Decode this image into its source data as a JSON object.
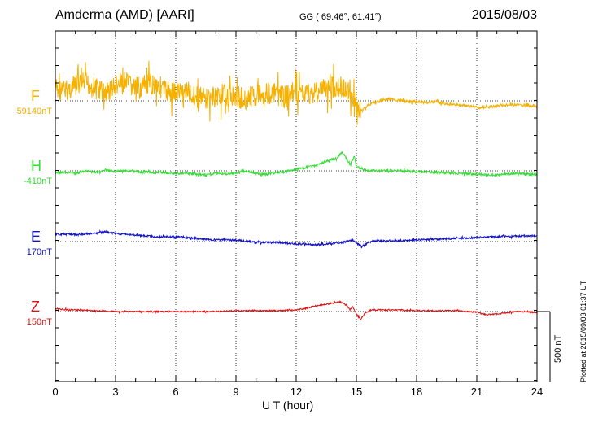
{
  "header": {
    "station": "Amderma (AMD)  [AARI]",
    "coords": "GG ( 69.46°,  61.41°)",
    "date": "2015/08/03"
  },
  "plotted_note": "Plotted at 2015/09/03 01:37 UT",
  "scale_label": "500 nT",
  "chart_data": {
    "type": "line",
    "xlabel": "U T (hour)",
    "x_ticks": [
      "0",
      "3",
      "6",
      "9",
      "12",
      "15",
      "18",
      "21",
      "24"
    ],
    "xlim": [
      0,
      24
    ],
    "grid": true,
    "scale_bar_nT": 500,
    "series": [
      {
        "name": "F",
        "baseline": "59140nT",
        "color": "#f5b000",
        "noise": 14,
        "points": [
          [
            0,
            -15
          ],
          [
            0.5,
            -12
          ],
          [
            1,
            -18
          ],
          [
            1.5,
            -22
          ],
          [
            2,
            -15
          ],
          [
            2.5,
            -10
          ],
          [
            3,
            -18
          ],
          [
            3.5,
            -22
          ],
          [
            4,
            -15
          ],
          [
            4.5,
            -18
          ],
          [
            5,
            -22
          ],
          [
            5.5,
            -12
          ],
          [
            6,
            -10
          ],
          [
            6.5,
            -12
          ],
          [
            7,
            -5
          ],
          [
            7.5,
            -2
          ],
          [
            8,
            -5
          ],
          [
            8.5,
            -8
          ],
          [
            9,
            -5
          ],
          [
            9.5,
            -2
          ],
          [
            10,
            -8
          ],
          [
            10.5,
            -10
          ],
          [
            11,
            -8
          ],
          [
            11.5,
            -5
          ],
          [
            12,
            -10
          ],
          [
            12.5,
            -8
          ],
          [
            13,
            -12
          ],
          [
            13.5,
            -15
          ],
          [
            14,
            -18
          ],
          [
            14.5,
            -12
          ],
          [
            14.8,
            -5
          ],
          [
            15,
            3
          ],
          [
            15.1,
            10
          ],
          [
            15.3,
            12
          ],
          [
            15.6,
            5
          ],
          [
            16,
            1
          ],
          [
            16.5,
            -2
          ],
          [
            17,
            -1
          ],
          [
            17.5,
            1
          ],
          [
            18,
            1
          ],
          [
            18.5,
            2
          ],
          [
            19,
            1
          ],
          [
            19.5,
            4
          ],
          [
            20,
            5
          ],
          [
            20.5,
            6
          ],
          [
            21,
            8
          ],
          [
            21.5,
            8
          ],
          [
            22,
            6
          ],
          [
            22.5,
            5
          ],
          [
            23,
            5
          ],
          [
            23.5,
            6
          ],
          [
            24,
            7
          ]
        ]
      },
      {
        "name": "H",
        "baseline": "-410nT",
        "color": "#33dd33",
        "noise": 1.5,
        "points": [
          [
            0,
            3
          ],
          [
            0.5,
            2
          ],
          [
            1,
            3
          ],
          [
            1.5,
            0
          ],
          [
            2,
            2
          ],
          [
            2.5,
            -1
          ],
          [
            3,
            1
          ],
          [
            3.5,
            0
          ],
          [
            4,
            1
          ],
          [
            5,
            2
          ],
          [
            6,
            3
          ],
          [
            7,
            4
          ],
          [
            7.5,
            5
          ],
          [
            8,
            3
          ],
          [
            8.5,
            4
          ],
          [
            9,
            3
          ],
          [
            9.5,
            0
          ],
          [
            10,
            3
          ],
          [
            10.5,
            4
          ],
          [
            11,
            2
          ],
          [
            11.5,
            1
          ],
          [
            12,
            -2
          ],
          [
            12.5,
            -4
          ],
          [
            13,
            -6
          ],
          [
            13.5,
            -12
          ],
          [
            14,
            -15
          ],
          [
            14.3,
            -23
          ],
          [
            14.5,
            -15
          ],
          [
            14.7,
            -8
          ],
          [
            14.9,
            -18
          ],
          [
            15,
            -5
          ],
          [
            15.3,
            -2
          ],
          [
            15.6,
            0
          ],
          [
            16,
            0
          ],
          [
            17,
            0
          ],
          [
            18,
            1
          ],
          [
            19,
            2
          ],
          [
            20,
            3
          ],
          [
            21,
            4
          ],
          [
            22,
            5
          ],
          [
            23,
            3
          ],
          [
            24,
            5
          ]
        ]
      },
      {
        "name": "E",
        "baseline": "170nT",
        "color": "#1111cc",
        "noise": 1.2,
        "points": [
          [
            0,
            -9
          ],
          [
            1,
            -9
          ],
          [
            2,
            -10
          ],
          [
            2.5,
            -12
          ],
          [
            3,
            -10
          ],
          [
            4,
            -8
          ],
          [
            5,
            -6
          ],
          [
            6,
            -6
          ],
          [
            7,
            -4
          ],
          [
            8,
            -2
          ],
          [
            9,
            -2
          ],
          [
            10,
            1
          ],
          [
            11,
            1
          ],
          [
            12,
            3
          ],
          [
            13,
            4
          ],
          [
            14,
            2
          ],
          [
            14.5,
            0
          ],
          [
            14.8,
            -2
          ],
          [
            15,
            2
          ],
          [
            15.3,
            6
          ],
          [
            15.6,
            1
          ],
          [
            16,
            -1
          ],
          [
            17,
            -1
          ],
          [
            18,
            -2
          ],
          [
            19,
            -3
          ],
          [
            20,
            -4
          ],
          [
            21,
            -5
          ],
          [
            22,
            -6
          ],
          [
            23,
            -7
          ],
          [
            24,
            -7
          ]
        ]
      },
      {
        "name": "Z",
        "baseline": "150nT",
        "color": "#dd1111",
        "noise": 0.8,
        "points": [
          [
            0,
            -3
          ],
          [
            1,
            -2
          ],
          [
            2,
            -1
          ],
          [
            3,
            0
          ],
          [
            4,
            0
          ],
          [
            5,
            0
          ],
          [
            6,
            0
          ],
          [
            7,
            0
          ],
          [
            8,
            0
          ],
          [
            9,
            -1
          ],
          [
            10,
            -1
          ],
          [
            11,
            -1
          ],
          [
            12,
            -2
          ],
          [
            12.5,
            -4
          ],
          [
            13,
            -7
          ],
          [
            13.5,
            -9
          ],
          [
            14,
            -11
          ],
          [
            14.2,
            -12
          ],
          [
            14.5,
            -8
          ],
          [
            14.7,
            -2
          ],
          [
            14.8,
            -6
          ],
          [
            15,
            3
          ],
          [
            15.2,
            10
          ],
          [
            15.4,
            3
          ],
          [
            15.7,
            -2
          ],
          [
            16,
            -2
          ],
          [
            17,
            -2
          ],
          [
            18,
            -1
          ],
          [
            19,
            -1
          ],
          [
            20,
            -1
          ],
          [
            21,
            1
          ],
          [
            21.5,
            4
          ],
          [
            22,
            3
          ],
          [
            23,
            0
          ],
          [
            24,
            1
          ]
        ]
      }
    ]
  }
}
